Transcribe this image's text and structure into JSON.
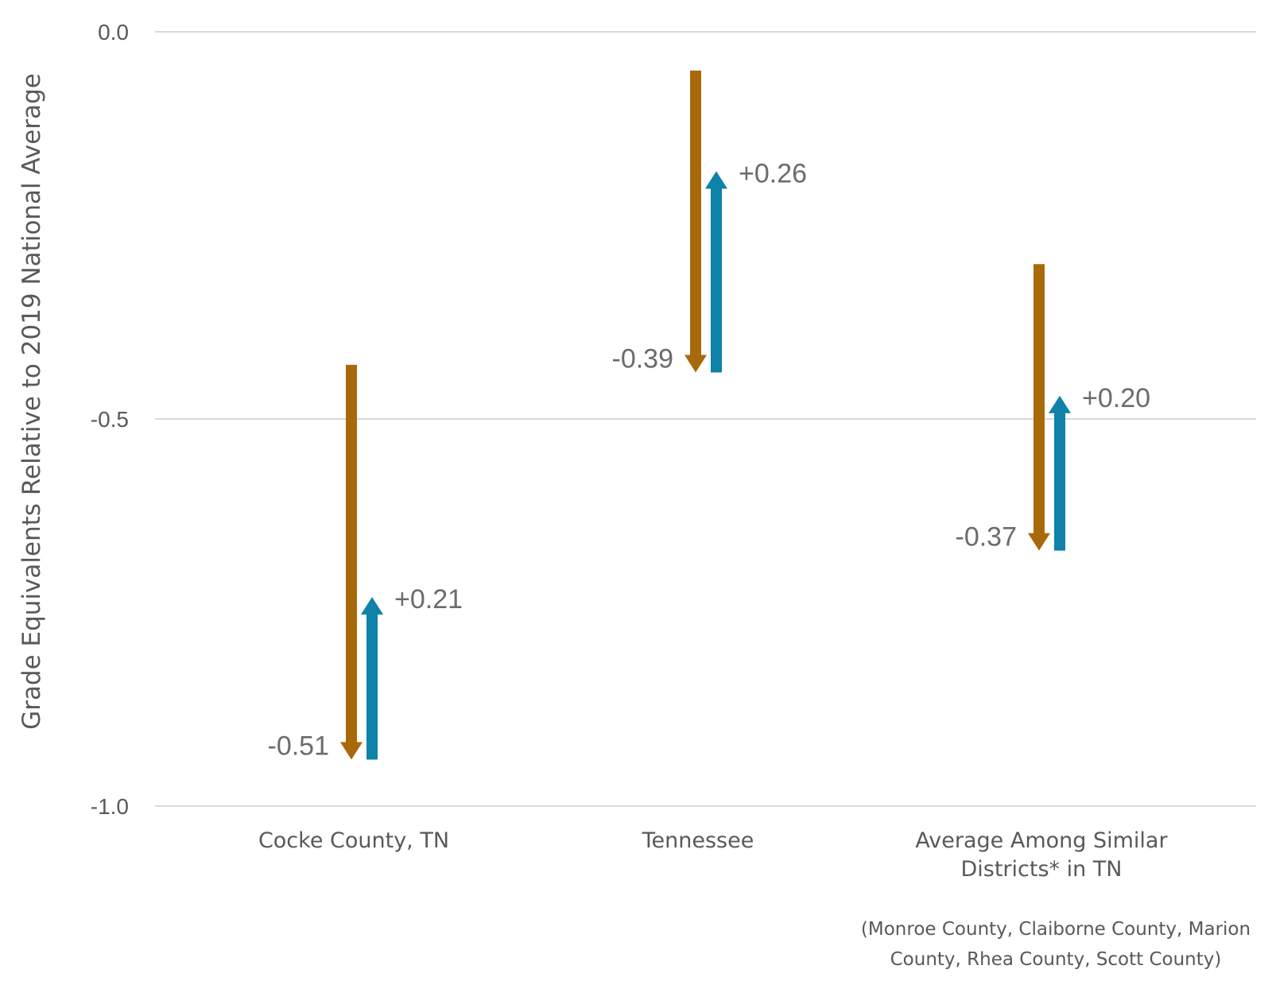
{
  "chart_data": {
    "type": "arrow",
    "ylabel": "Grade Equivalents Relative to 2019 National Average",
    "ylim": [
      -1.0,
      0.0
    ],
    "yticks": [
      {
        "value": 0.0,
        "label": "0.0"
      },
      {
        "value": -0.5,
        "label": "-0.5"
      },
      {
        "value": -1.0,
        "label": "-1.0"
      }
    ],
    "grid": true,
    "colors": {
      "decline": "#A8690A",
      "recovery": "#0E82A8"
    },
    "categories": [
      {
        "lines": [
          "Cocke County, TN"
        ],
        "start": -0.43,
        "decline": -0.51,
        "decline_label": "-0.51",
        "recovery": 0.21,
        "recovery_label": "+0.21"
      },
      {
        "lines": [
          "Tennessee"
        ],
        "start": -0.05,
        "decline": -0.39,
        "decline_label": "-0.39",
        "recovery": 0.26,
        "recovery_label": "+0.26"
      },
      {
        "lines": [
          "Average Among Similar",
          "Districts* in TN"
        ],
        "start": -0.3,
        "decline": -0.37,
        "decline_label": "-0.37",
        "recovery": 0.2,
        "recovery_label": "+0.20"
      }
    ],
    "footnote": [
      "(Monroe County, Claiborne County, Marion",
      "County, Rhea County, Scott County)"
    ]
  }
}
